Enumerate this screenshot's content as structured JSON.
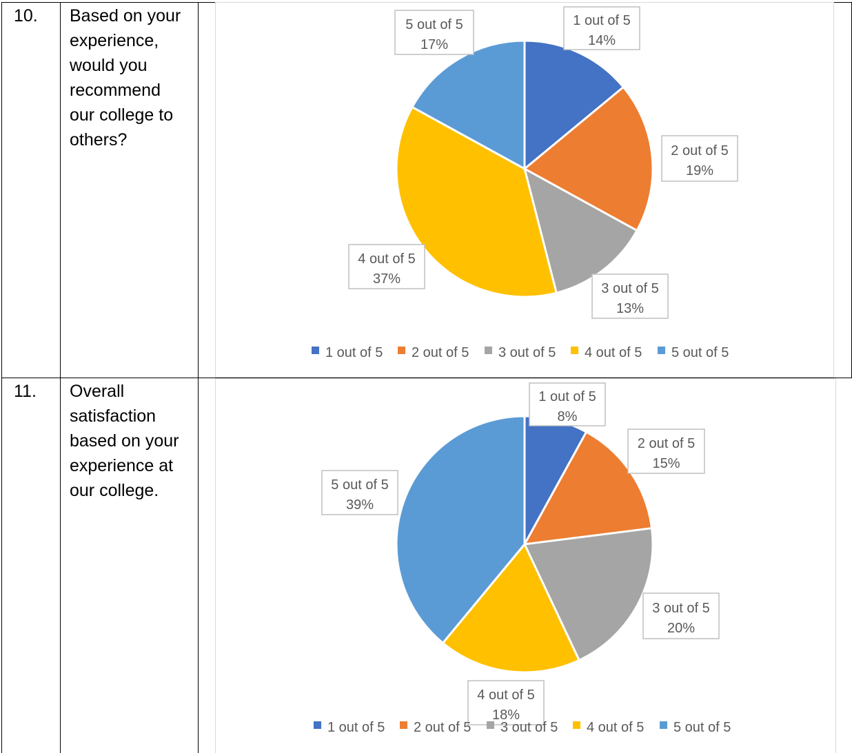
{
  "rows": [
    {
      "number": "10.",
      "question_lines": [
        "Based on your",
        "experience,",
        "would you",
        "recommend",
        "our college to",
        "others?"
      ]
    },
    {
      "number": "11.",
      "question_lines": [
        "Overall",
        "satisfaction",
        "based on your",
        "experience at",
        "our college."
      ]
    }
  ],
  "chart_data": [
    {
      "type": "pie",
      "categories": [
        "1 out of 5",
        "2 out of 5",
        "3 out of 5",
        "4 out of 5",
        "5 out of 5"
      ],
      "values": [
        14,
        19,
        13,
        37,
        17
      ],
      "data_labels": [
        "14%",
        "19%",
        "13%",
        "37%",
        "17%"
      ],
      "colors": [
        "#4472C4",
        "#ED7D31",
        "#A5A5A5",
        "#FFC000",
        "#5B9BD5"
      ],
      "legend_placement": "bottom"
    },
    {
      "type": "pie",
      "categories": [
        "1 out of 5",
        "2 out of 5",
        "3 out of 5",
        "4 out of 5",
        "5 out of 5"
      ],
      "values": [
        8,
        15,
        20,
        18,
        39
      ],
      "data_labels": [
        "8%",
        "15%",
        "20%",
        "18%",
        "39%"
      ],
      "colors": [
        "#4472C4",
        "#ED7D31",
        "#A5A5A5",
        "#FFC000",
        "#5B9BD5"
      ],
      "legend_placement": "bottom"
    }
  ]
}
